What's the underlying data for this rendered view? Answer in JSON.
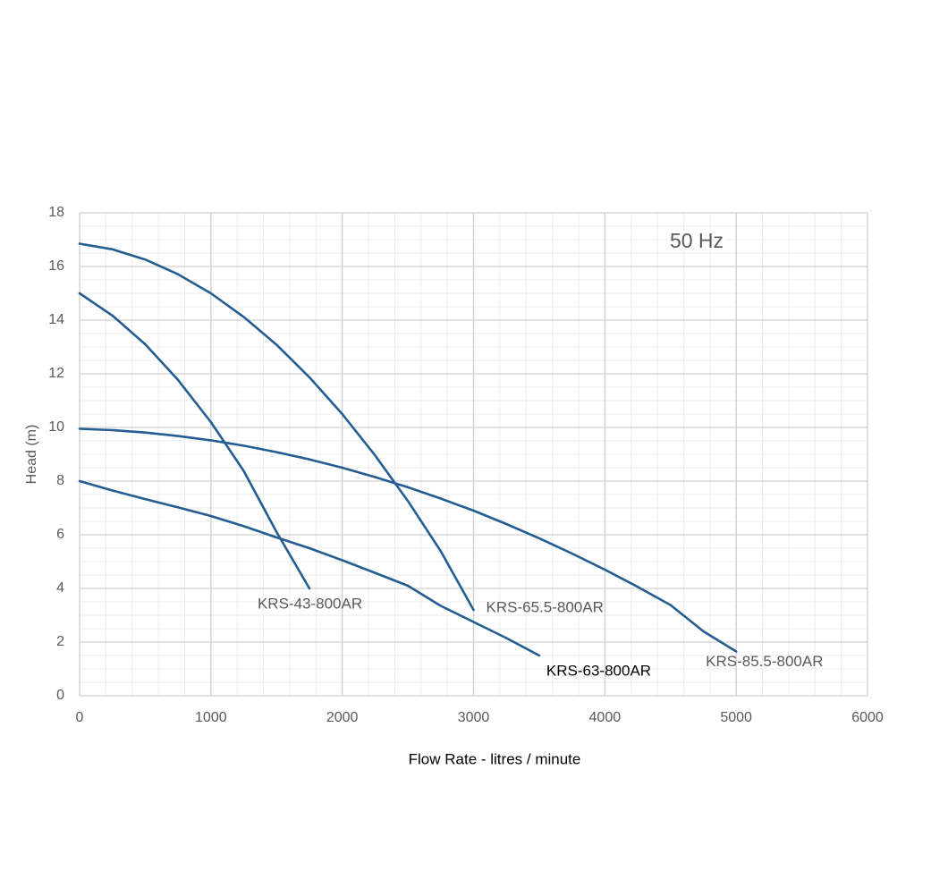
{
  "chart_data": {
    "type": "line",
    "xlabel": "Flow Rate - litres / minute",
    "ylabel": "Head (m)",
    "annotation": "50 Hz",
    "x": [
      0,
      250,
      500,
      750,
      1000,
      1250,
      1500,
      1750,
      2000,
      2250,
      2500,
      2750,
      3000,
      3250,
      3500,
      3750,
      4000,
      4250,
      4500,
      4750,
      5000
    ],
    "series": [
      {
        "name": "KRS-43-800AR",
        "color": "#245d92",
        "values": [
          15,
          14.17,
          13.1,
          11.77,
          10.2,
          8.38,
          6.1,
          4.0,
          null,
          null,
          null,
          null,
          null,
          null,
          null,
          null,
          null,
          null,
          null,
          null,
          null
        ]
      },
      {
        "name": "KRS-65.5-800AR",
        "color": "#245d92",
        "values": [
          16.85,
          16.64,
          16.26,
          15.71,
          15.0,
          14.12,
          13.08,
          11.87,
          10.5,
          8.96,
          7.26,
          5.39,
          3.2,
          null,
          null,
          null,
          null,
          null,
          null,
          null,
          null
        ]
      },
      {
        "name": "KRS-63-800AR",
        "color": "#245d92",
        "values": [
          8.0,
          7.65,
          7.33,
          7.02,
          6.7,
          6.32,
          5.9,
          5.5,
          5.05,
          4.58,
          4.1,
          3.35,
          2.75,
          2.15,
          1.5,
          null,
          null,
          null,
          null,
          null,
          null
        ]
      },
      {
        "name": "KRS-85.5-800AR",
        "color": "#245d92",
        "values": [
          9.95,
          9.9,
          9.81,
          9.68,
          9.52,
          9.32,
          9.08,
          8.81,
          8.5,
          8.15,
          7.77,
          7.35,
          6.9,
          6.4,
          5.87,
          5.3,
          4.7,
          4.06,
          3.38,
          2.4,
          1.65
        ]
      }
    ],
    "xlim": [
      0,
      6000
    ],
    "xticks": [
      0,
      1000,
      2000,
      3000,
      4000,
      5000,
      6000
    ],
    "ylim": [
      0,
      18
    ],
    "yticks": [
      0,
      2,
      4,
      6,
      8,
      10,
      12,
      14,
      16,
      18
    ],
    "grid": true
  }
}
